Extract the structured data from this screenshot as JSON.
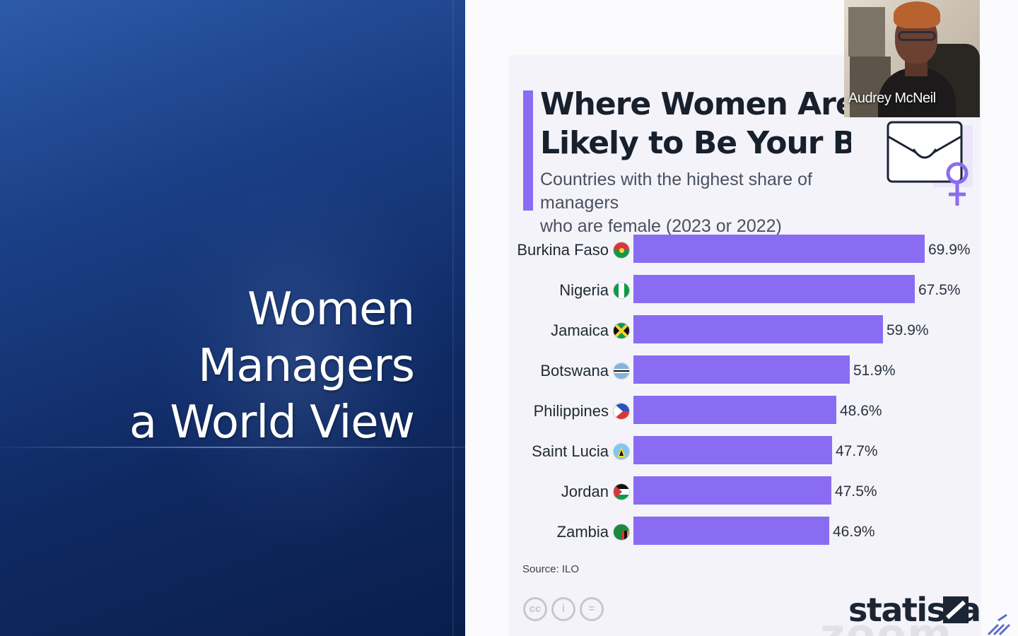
{
  "slide": {
    "title_line1": "Women Managers",
    "title_line2": "a World View"
  },
  "infographic": {
    "title_line1": "Where Women Are Mo",
    "title_line2": "Likely to Be Your Boss",
    "subtitle_line1": "Countries with the highest share of managers",
    "subtitle_line2": "who are female (2023 or 2022)",
    "source": "Source: ILO",
    "brand": "statista",
    "accent_color": "#8a6cf2",
    "illustration_icon": "briefcase-female-icon"
  },
  "chart_data": {
    "type": "bar",
    "orientation": "horizontal",
    "title": "Where Women Are Most Likely to Be Your Boss",
    "subtitle": "Countries with the highest share of managers who are female (2023 or 2022)",
    "categories": [
      "Burkina Faso",
      "Nigeria",
      "Jamaica",
      "Botswana",
      "Philippines",
      "Saint Lucia",
      "Jordan",
      "Zambia"
    ],
    "values": [
      69.9,
      67.5,
      59.9,
      51.9,
      48.6,
      47.7,
      47.5,
      46.9
    ],
    "value_labels": [
      "69.9%",
      "67.5%",
      "59.9%",
      "51.9%",
      "48.6%",
      "47.7%",
      "47.5%",
      "46.9%"
    ],
    "xlim": [
      0,
      70
    ],
    "grid": false,
    "bar_color": "#8a6cf2"
  },
  "participant": {
    "name": "Audrey McNeil"
  },
  "watermark": "zoom"
}
